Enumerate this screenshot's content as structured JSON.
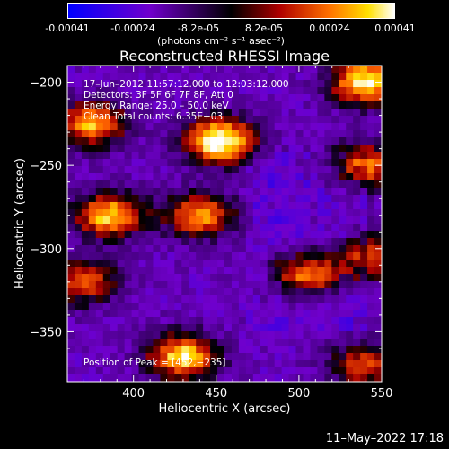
{
  "colorbar": {
    "ticks": [
      "-0.00041",
      "-0.00024",
      "-8.2e-05",
      "8.2e-05",
      "0.00024",
      "0.00041"
    ],
    "unit_label": "(photons cm⁻² s⁻¹ asec⁻²)",
    "colors": [
      "#0000ff",
      "#6600cc",
      "#000000",
      "#aa0000",
      "#ff6600",
      "#ffffff"
    ]
  },
  "chart_data": {
    "type": "heatmap",
    "title": "Reconstructed RHESSI Image",
    "xlabel": "Heliocentric X (arcsec)",
    "ylabel": "Heliocentric Y (arcsec)",
    "xlim": [
      360,
      550
    ],
    "ylim": [
      -380,
      -190
    ],
    "x_ticks": [
      400,
      450,
      500,
      550
    ],
    "y_ticks": [
      -200,
      -250,
      -300,
      -350
    ],
    "x_tick_labels": [
      "400",
      "450",
      "500",
      "550"
    ],
    "y_tick_labels": [
      "−200",
      "−250",
      "−300",
      "−350"
    ],
    "annotations": [
      "17–Jun–2012 11:57:12.000 to 12:03:12.000",
      "Detectors: 3F 5F 6F 7F 8F, Att 0",
      "Energy Range: 25.0 – 50.0 keV",
      "Clean     Total counts: 6.35E+03"
    ],
    "peak_label": "Position of Peak = [452,−235]",
    "peak": [
      452,
      -235
    ],
    "colormap": "blue-purple-black-red-yellow-white",
    "bright_regions": [
      {
        "x": 452,
        "y": -235,
        "intensity": 1.0
      },
      {
        "x": 375,
        "y": -225,
        "intensity": 0.75
      },
      {
        "x": 385,
        "y": -280,
        "intensity": 0.8
      },
      {
        "x": 440,
        "y": -280,
        "intensity": 0.7
      },
      {
        "x": 430,
        "y": -365,
        "intensity": 0.85
      },
      {
        "x": 540,
        "y": -200,
        "intensity": 0.9
      },
      {
        "x": 540,
        "y": -250,
        "intensity": 0.65
      },
      {
        "x": 505,
        "y": -315,
        "intensity": 0.7
      },
      {
        "x": 545,
        "y": -305,
        "intensity": 0.6
      },
      {
        "x": 370,
        "y": -320,
        "intensity": 0.6
      },
      {
        "x": 540,
        "y": -370,
        "intensity": 0.55
      }
    ]
  },
  "footer": {
    "date": "11–May–2022 17:18"
  }
}
